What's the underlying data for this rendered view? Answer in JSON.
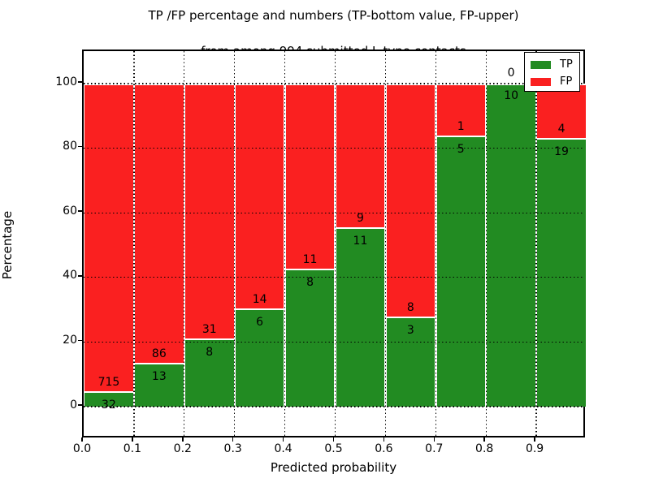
{
  "colors": {
    "tp": "#228b22",
    "fp": "#fa2020",
    "text": "#000000",
    "background": "#ffffff"
  },
  "chart_data": {
    "type": "bar",
    "subtype": "stacked-percentage",
    "title": "TP /FP percentage and numbers (TP-bottom value, FP-upper)",
    "subtitle": "from among 994 submitted L-type contacts",
    "xlabel": "Predicted probability",
    "ylabel": "Percentage",
    "total_submitted": 994,
    "x_tick_labels": [
      "0.0",
      "0.1",
      "0.2",
      "0.3",
      "0.4",
      "0.5",
      "0.6",
      "0.7",
      "0.8",
      "0.9"
    ],
    "y_tick_labels": [
      "0",
      "20",
      "40",
      "60",
      "80",
      "100"
    ],
    "y_ticks": [
      0,
      20,
      40,
      60,
      80,
      100
    ],
    "xlim": [
      0.0,
      1.0
    ],
    "ylim": [
      -10,
      110
    ],
    "grid": "dotted",
    "legend_position": "upper right",
    "legend": [
      {
        "label": "TP",
        "color": "#228b22"
      },
      {
        "label": "FP",
        "color": "#fa2020"
      }
    ],
    "bin_width": 0.1,
    "bins": [
      {
        "range": "0.0-0.1",
        "tp": 32,
        "fp": 715,
        "tp_pct": 4.3
      },
      {
        "range": "0.1-0.2",
        "tp": 13,
        "fp": 86,
        "tp_pct": 13.1
      },
      {
        "range": "0.2-0.3",
        "tp": 8,
        "fp": 31,
        "tp_pct": 20.5
      },
      {
        "range": "0.3-0.4",
        "tp": 6,
        "fp": 14,
        "tp_pct": 30.0
      },
      {
        "range": "0.4-0.5",
        "tp": 8,
        "fp": 11,
        "tp_pct": 42.1
      },
      {
        "range": "0.5-0.6",
        "tp": 11,
        "fp": 9,
        "tp_pct": 55.0
      },
      {
        "range": "0.6-0.7",
        "tp": 3,
        "fp": 8,
        "tp_pct": 27.3
      },
      {
        "range": "0.7-0.8",
        "tp": 5,
        "fp": 1,
        "tp_pct": 83.3
      },
      {
        "range": "0.8-0.9",
        "tp": 10,
        "fp": 0,
        "tp_pct": 100.0
      },
      {
        "range": "0.9-1.0",
        "tp": 19,
        "fp": 4,
        "tp_pct": 82.6
      }
    ]
  }
}
